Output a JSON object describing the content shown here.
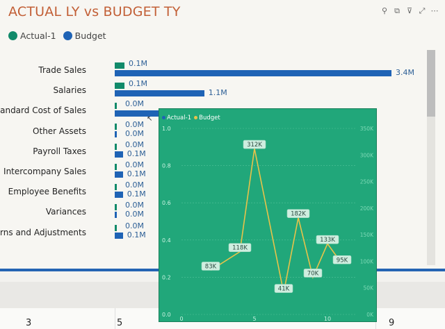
{
  "title": "ACTUAL LY vs BUDGET TY",
  "legend": [
    {
      "label": "Actual-1",
      "color": "#118a6a"
    },
    {
      "label": "Budget",
      "color": "#1f63b5"
    }
  ],
  "header_icons": [
    "pin-icon",
    "copy-icon",
    "filter-icon",
    "focus-mode-icon",
    "more-options-icon"
  ],
  "chart_data": [
    {
      "type": "bar",
      "orientation": "horizontal",
      "categories": [
        "Trade Sales",
        "Salaries",
        "Standard Cost of Sales",
        "Other Assets",
        "Payroll Taxes",
        "Intercompany Sales",
        "Employee Benefits",
        "Variances",
        "Returns and Adjustments"
      ],
      "series": [
        {
          "name": "Actual-1",
          "values": [
            0.1,
            0.1,
            0.0,
            0.0,
            0.0,
            0.0,
            0.0,
            0.0,
            0.0
          ],
          "labels": [
            "0.1M",
            "0.1M",
            "0.0M",
            "0.0M",
            "0.0M",
            "0.0M",
            "0.0M",
            "0.0M",
            "0.0M"
          ]
        },
        {
          "name": "Budget",
          "values": [
            3.4,
            1.1,
            0.9,
            0.0,
            0.1,
            0.1,
            0.1,
            0.0,
            0.1
          ],
          "labels": [
            "3.4M",
            "1.1M",
            "",
            "0.0M",
            "0.1M",
            "0.1M",
            "0.1M",
            "0.0M",
            "0.1M"
          ]
        }
      ],
      "xlim": [
        0,
        3.4
      ]
    },
    {
      "type": "line",
      "legend": [
        "Actual-1",
        "Budget"
      ],
      "legend_colors": [
        "#1f63b5",
        "#e8c34a"
      ],
      "x": [
        2,
        4,
        5,
        7,
        8,
        9,
        10,
        11
      ],
      "series": [
        {
          "name": "Budget",
          "values": [
            83,
            118,
            312,
            41,
            182,
            70,
            133,
            95
          ],
          "labels": [
            "83K",
            "118K",
            "312K",
            "41K",
            "182K",
            "70K",
            "133K",
            "95K"
          ]
        }
      ],
      "left_ticks": [
        "1.0",
        "0.8",
        "0.6",
        "0.4",
        "0.2",
        "0.0"
      ],
      "right_ticks": [
        "350K",
        "300K",
        "250K",
        "200K",
        "150K",
        "100K",
        "50K",
        "0K"
      ],
      "x_ticks": [
        "0",
        "5",
        "10"
      ],
      "ylim_left": [
        0,
        1.0
      ],
      "ylim_right": [
        0,
        350
      ],
      "xlim": [
        0,
        12
      ]
    }
  ],
  "bottom_columns": [
    "3",
    "5",
    "9"
  ]
}
